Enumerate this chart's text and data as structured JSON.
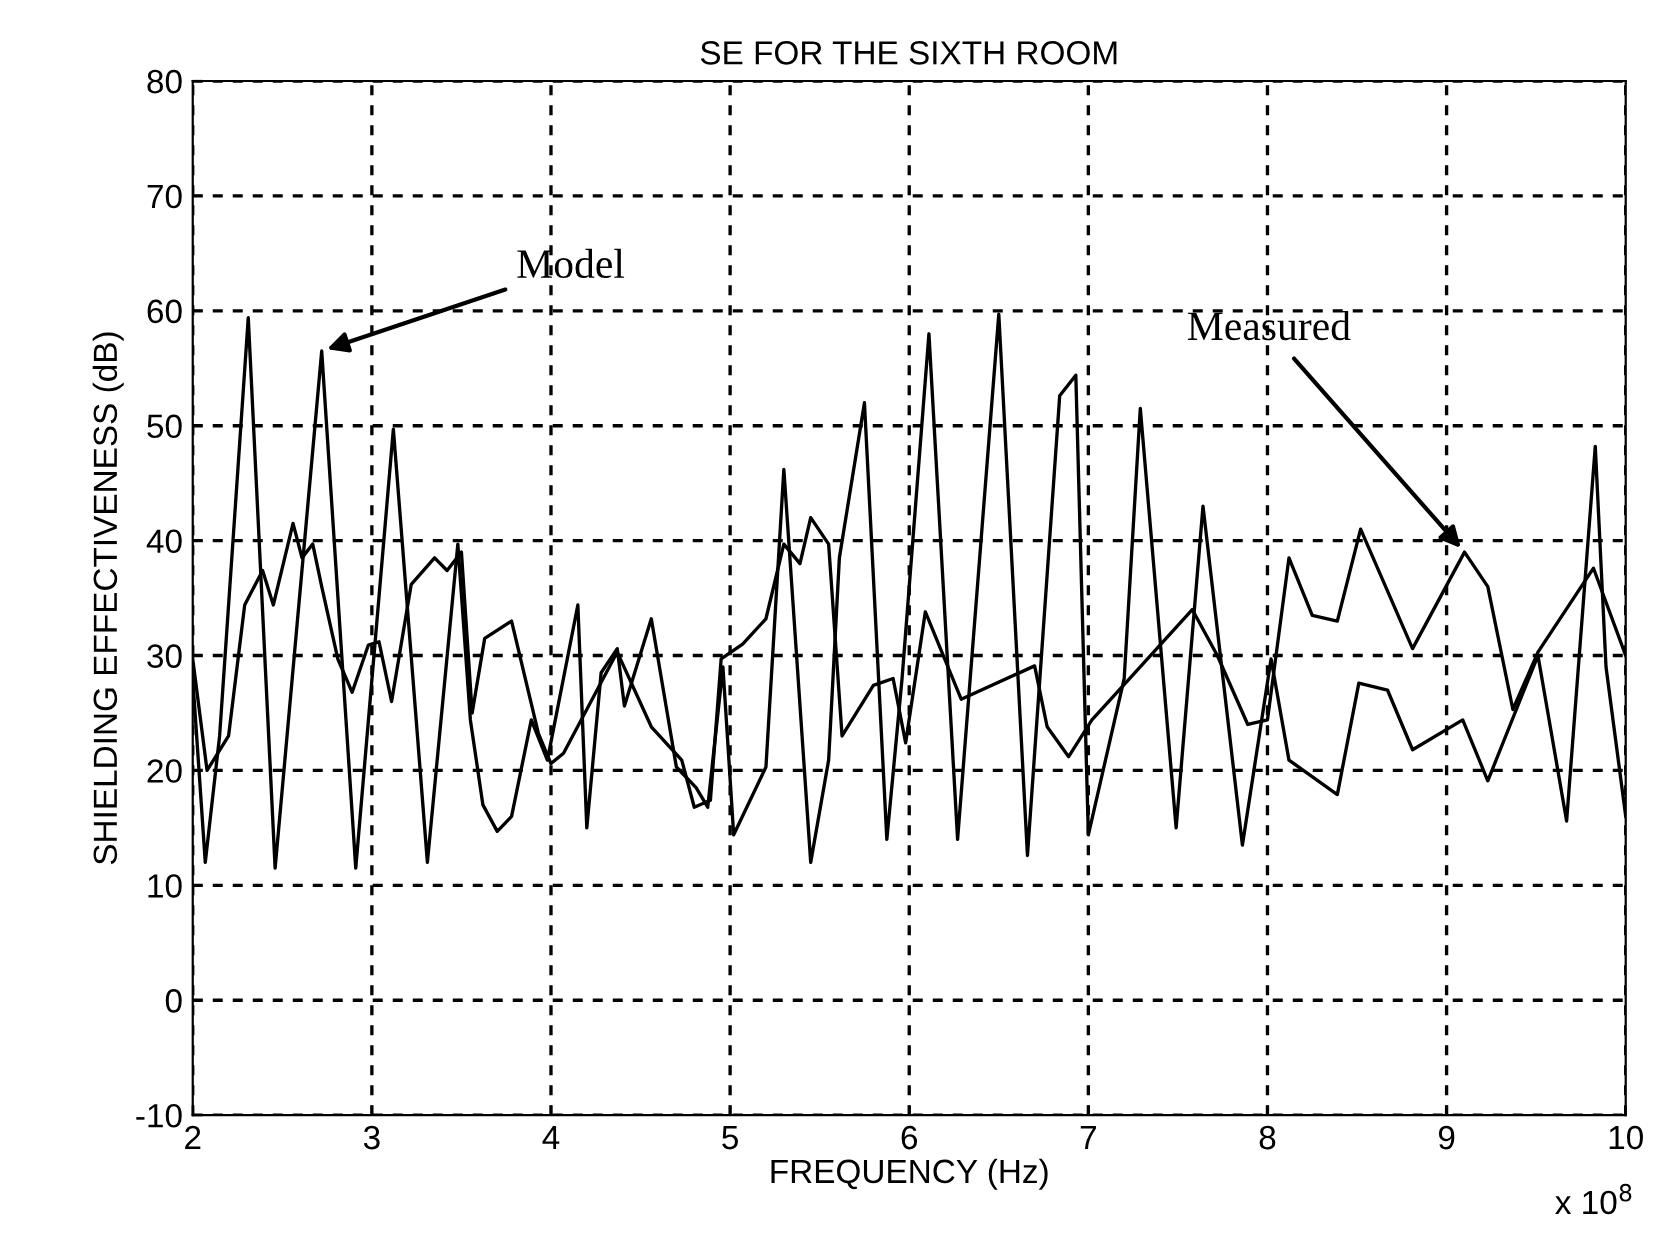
{
  "chart_data": {
    "type": "line",
    "title": "SE FOR THE SIXTH ROOM",
    "xlabel": "FREQUENCY (Hz)",
    "ylabel": "SHIELDING EFFECTIVENESS (dB)",
    "xlim": [
      2,
      10
    ],
    "xticks": [
      2,
      3,
      4,
      5,
      6,
      7,
      8,
      9,
      10
    ],
    "ylim": [
      -10,
      80
    ],
    "yticks": [
      -10,
      0,
      10,
      20,
      30,
      40,
      50,
      60,
      70,
      80
    ],
    "grid": true,
    "line_style": "solid",
    "marker": "none",
    "annotations": [
      {
        "text": "Model",
        "x": 2.72,
        "y": 56.5
      },
      {
        "text": "Measured",
        "x": 9.1,
        "y": 39
      },
      "x 10$^{8}$"
    ],
    "series": [
      {
        "color": "#000000",
        "x": [
          2.0,
          2.07,
          2.15,
          2.31,
          2.46,
          2.72,
          2.91,
          3.12,
          3.31,
          3.48,
          3.55,
          3.62,
          3.7,
          3.78,
          3.89,
          3.98,
          4.15,
          4.2,
          4.28,
          4.37,
          4.41,
          4.56,
          4.7,
          4.81,
          4.875,
          4.96,
          5.02,
          5.2,
          5.3,
          5.45,
          5.55,
          5.61,
          5.75,
          5.875,
          5.96,
          6.11,
          6.27,
          6.5,
          6.66,
          6.84,
          6.93,
          7.0,
          7.2,
          7.29,
          7.49,
          7.64,
          7.86,
          8.02,
          8.12,
          8.39,
          8.51,
          8.67,
          8.81,
          9.09,
          9.23,
          9.51,
          9.67,
          9.83,
          9.89,
          10.0
        ],
        "values": [
          28,
          12,
          23,
          59.4,
          11.5,
          56.5,
          11.5,
          49.7,
          12,
          39.7,
          24.4,
          17,
          14.7,
          16,
          24.4,
          20.9,
          34.4,
          15,
          28.5,
          30.6,
          25.6,
          33.2,
          20.3,
          18.5,
          16.8,
          29,
          14.4,
          20.3,
          46.2,
          12,
          20.9,
          38.5,
          52,
          14,
          28,
          58,
          14,
          59.7,
          12.6,
          52.6,
          54.4,
          14.4,
          28,
          51.5,
          15,
          43,
          13.5,
          29.7,
          20.9,
          17.9,
          27.6,
          27,
          21.8,
          24.4,
          19.1,
          30,
          15.6,
          48.2,
          29,
          16
        ]
      },
      {
        "color": "#000000",
        "x": [
          2.0,
          2.08,
          2.2,
          2.29,
          2.39,
          2.45,
          2.56,
          2.61,
          2.67,
          2.72,
          2.81,
          2.89,
          2.98,
          3.04,
          3.11,
          3.22,
          3.35,
          3.42,
          3.5,
          3.56,
          3.63,
          3.78,
          3.93,
          4.0,
          4.07,
          4.37,
          4.56,
          4.73,
          4.8,
          4.89,
          4.95,
          5.07,
          5.2,
          5.3,
          5.39,
          5.45,
          5.55,
          5.625,
          5.8,
          5.91,
          5.98,
          6.09,
          6.29,
          6.7,
          6.77,
          6.89,
          7.02,
          7.23,
          7.58,
          7.72,
          7.89,
          8.0,
          8.12,
          8.25,
          8.39,
          8.52,
          8.81,
          9.1,
          9.23,
          9.37,
          9.51,
          9.82,
          10.0
        ],
        "values": [
          29.7,
          20,
          23,
          34.4,
          37.4,
          34.4,
          41.5,
          38.5,
          39.7,
          36,
          29.7,
          26.8,
          30.9,
          31.2,
          26,
          36.2,
          38.5,
          37.4,
          39,
          25,
          31.5,
          33,
          23.2,
          20.6,
          21.5,
          30.3,
          23.8,
          20.9,
          16.8,
          17.4,
          29.7,
          31,
          33.2,
          39.7,
          38,
          42,
          39.7,
          23,
          27.4,
          28,
          22.4,
          33.8,
          26.2,
          29.1,
          23.8,
          21.2,
          24.4,
          28,
          34,
          30,
          24,
          24.4,
          38.5,
          33.5,
          33,
          41,
          30.6,
          39,
          36,
          25.3,
          30.3,
          37.6,
          30
        ]
      }
    ]
  }
}
